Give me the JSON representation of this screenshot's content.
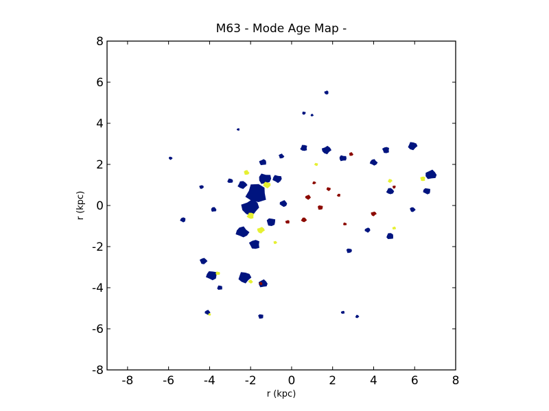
{
  "chart_data": {
    "type": "heatmap",
    "title": "M63 - Mode Age Map -",
    "xlabel": "r (kpc)",
    "ylabel": "r (kpc)",
    "xlim": [
      -9,
      8
    ],
    "ylim": [
      -8,
      8
    ],
    "xticks": [
      -8,
      -6,
      -4,
      -2,
      0,
      2,
      4,
      6,
      8
    ],
    "yticks": [
      -8,
      -6,
      -4,
      -2,
      0,
      2,
      4,
      6,
      8
    ],
    "xtick_labels": [
      "-8",
      "-6",
      "-4",
      "-2",
      "0",
      "2",
      "4",
      "6",
      "8"
    ],
    "ytick_labels": [
      "-8",
      "-6",
      "-4",
      "-2",
      "0",
      "2",
      "4",
      "6",
      "8"
    ],
    "grid": false,
    "colors": {
      "young": "#00147f",
      "intermediate": "#e6f032",
      "old": "#8c0a00"
    },
    "clumps": [
      {
        "x": -1.7,
        "y": 0.6,
        "r": 0.6,
        "c": "young"
      },
      {
        "x": -2.0,
        "y": -0.1,
        "r": 0.5,
        "c": "young"
      },
      {
        "x": -1.3,
        "y": 1.3,
        "r": 0.35,
        "c": "young"
      },
      {
        "x": -2.4,
        "y": -1.3,
        "r": 0.35,
        "c": "young"
      },
      {
        "x": -1.8,
        "y": -1.9,
        "r": 0.3,
        "c": "young"
      },
      {
        "x": -2.3,
        "y": -3.5,
        "r": 0.35,
        "c": "young"
      },
      {
        "x": -1.4,
        "y": -3.8,
        "r": 0.25,
        "c": "young"
      },
      {
        "x": -3.9,
        "y": -3.4,
        "r": 0.3,
        "c": "young"
      },
      {
        "x": -4.3,
        "y": -2.7,
        "r": 0.2,
        "c": "young"
      },
      {
        "x": -3.5,
        "y": -4.0,
        "r": 0.15,
        "c": "young"
      },
      {
        "x": -4.1,
        "y": -5.2,
        "r": 0.15,
        "c": "young"
      },
      {
        "x": -1.5,
        "y": -5.4,
        "r": 0.15,
        "c": "young"
      },
      {
        "x": -2.4,
        "y": 1.0,
        "r": 0.25,
        "c": "young"
      },
      {
        "x": -1.4,
        "y": 2.1,
        "r": 0.2,
        "c": "young"
      },
      {
        "x": -0.7,
        "y": 1.3,
        "r": 0.25,
        "c": "young"
      },
      {
        "x": -0.5,
        "y": 2.4,
        "r": 0.15,
        "c": "young"
      },
      {
        "x": 0.6,
        "y": 2.8,
        "r": 0.2,
        "c": "young"
      },
      {
        "x": 1.7,
        "y": 2.7,
        "r": 0.25,
        "c": "young"
      },
      {
        "x": 2.5,
        "y": 2.3,
        "r": 0.2,
        "c": "young"
      },
      {
        "x": 4.0,
        "y": 2.1,
        "r": 0.2,
        "c": "young"
      },
      {
        "x": 4.6,
        "y": 2.7,
        "r": 0.2,
        "c": "young"
      },
      {
        "x": 5.9,
        "y": 2.9,
        "r": 0.25,
        "c": "young"
      },
      {
        "x": 6.8,
        "y": 1.5,
        "r": 0.3,
        "c": "young"
      },
      {
        "x": 6.6,
        "y": 0.7,
        "r": 0.2,
        "c": "young"
      },
      {
        "x": 5.9,
        "y": -0.2,
        "r": 0.15,
        "c": "young"
      },
      {
        "x": 4.8,
        "y": -1.5,
        "r": 0.2,
        "c": "young"
      },
      {
        "x": 3.7,
        "y": -1.2,
        "r": 0.15,
        "c": "young"
      },
      {
        "x": 2.8,
        "y": -2.2,
        "r": 0.15,
        "c": "young"
      },
      {
        "x": 4.8,
        "y": 0.7,
        "r": 0.2,
        "c": "young"
      },
      {
        "x": 1.7,
        "y": 5.5,
        "r": 0.12,
        "c": "young"
      },
      {
        "x": 0.6,
        "y": 4.5,
        "r": 0.1,
        "c": "young"
      },
      {
        "x": 1.0,
        "y": 4.4,
        "r": 0.08,
        "c": "young"
      },
      {
        "x": -2.6,
        "y": 3.7,
        "r": 0.08,
        "c": "young"
      },
      {
        "x": -5.9,
        "y": 2.3,
        "r": 0.1,
        "c": "young"
      },
      {
        "x": -3.8,
        "y": -0.2,
        "r": 0.15,
        "c": "young"
      },
      {
        "x": -5.3,
        "y": -0.7,
        "r": 0.15,
        "c": "young"
      },
      {
        "x": -4.4,
        "y": 0.9,
        "r": 0.12,
        "c": "young"
      },
      {
        "x": -3.0,
        "y": 1.2,
        "r": 0.15,
        "c": "young"
      },
      {
        "x": -0.4,
        "y": 0.1,
        "r": 0.2,
        "c": "young"
      },
      {
        "x": -1.0,
        "y": -0.8,
        "r": 0.25,
        "c": "young"
      },
      {
        "x": 3.2,
        "y": -5.4,
        "r": 0.1,
        "c": "young"
      },
      {
        "x": 2.5,
        "y": -5.2,
        "r": 0.1,
        "c": "young"
      },
      {
        "x": -1.2,
        "y": 1.0,
        "r": 0.2,
        "c": "intermediate"
      },
      {
        "x": -2.2,
        "y": 1.6,
        "r": 0.15,
        "c": "intermediate"
      },
      {
        "x": -2.0,
        "y": -0.5,
        "r": 0.2,
        "c": "intermediate"
      },
      {
        "x": -1.5,
        "y": -1.2,
        "r": 0.2,
        "c": "intermediate"
      },
      {
        "x": -3.6,
        "y": -3.3,
        "r": 0.12,
        "c": "intermediate"
      },
      {
        "x": -2.0,
        "y": -3.7,
        "r": 0.12,
        "c": "intermediate"
      },
      {
        "x": 6.4,
        "y": 1.3,
        "r": 0.15,
        "c": "intermediate"
      },
      {
        "x": 4.8,
        "y": 1.2,
        "r": 0.12,
        "c": "intermediate"
      },
      {
        "x": 5.0,
        "y": -1.1,
        "r": 0.1,
        "c": "intermediate"
      },
      {
        "x": 1.2,
        "y": 2.0,
        "r": 0.1,
        "c": "intermediate"
      },
      {
        "x": -0.8,
        "y": -1.8,
        "r": 0.1,
        "c": "intermediate"
      },
      {
        "x": -4.0,
        "y": -5.3,
        "r": 0.08,
        "c": "intermediate"
      },
      {
        "x": 0.8,
        "y": 0.4,
        "r": 0.15,
        "c": "old"
      },
      {
        "x": 1.4,
        "y": -0.1,
        "r": 0.15,
        "c": "old"
      },
      {
        "x": 0.6,
        "y": -0.7,
        "r": 0.15,
        "c": "old"
      },
      {
        "x": -0.2,
        "y": -0.8,
        "r": 0.12,
        "c": "old"
      },
      {
        "x": 1.8,
        "y": 0.8,
        "r": 0.12,
        "c": "old"
      },
      {
        "x": 2.9,
        "y": 2.5,
        "r": 0.12,
        "c": "old"
      },
      {
        "x": 2.3,
        "y": 0.5,
        "r": 0.1,
        "c": "old"
      },
      {
        "x": 4.0,
        "y": -0.4,
        "r": 0.15,
        "c": "old"
      },
      {
        "x": 2.6,
        "y": -0.9,
        "r": 0.1,
        "c": "old"
      },
      {
        "x": -1.5,
        "y": -3.8,
        "r": 0.1,
        "c": "old"
      },
      {
        "x": 5.0,
        "y": 0.9,
        "r": 0.1,
        "c": "old"
      },
      {
        "x": 1.1,
        "y": 1.1,
        "r": 0.1,
        "c": "old"
      }
    ]
  }
}
